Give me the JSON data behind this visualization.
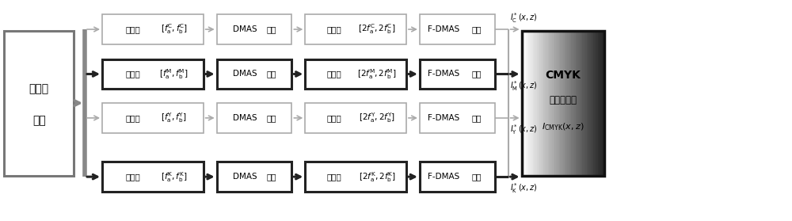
{
  "rows": [
    {
      "label": "C",
      "color": "#aaaaaa",
      "lw": 1.2
    },
    {
      "label": "M",
      "color": "#222222",
      "lw": 2.2
    },
    {
      "label": "Y",
      "color": "#aaaaaa",
      "lw": 1.2
    },
    {
      "label": "K",
      "color": "#222222",
      "lw": 2.2
    }
  ],
  "box1_texts": [
    "prefilter_C",
    "prefilter_M",
    "prefilter_Y",
    "prefilter_K"
  ],
  "box2_texts": [
    "DMAS_alg",
    "DMAS_alg",
    "DMAS_alg",
    "DMAS_alg"
  ],
  "box3_texts": [
    "postfilter_C",
    "postfilter_M",
    "postfilter_Y",
    "postfilter_K"
  ],
  "box4_texts": [
    "FDMAS_img",
    "FDMAS_img",
    "FDMAS_img",
    "FDMAS_img"
  ],
  "output_labels_above": [
    "$I_\\mathrm{C}^*(x,z)$",
    null,
    null,
    null
  ],
  "output_labels_below": [
    null,
    "$I_\\mathrm{M}^*(x,z)$",
    "$I_\\mathrm{Y}^*(x,z)$",
    "$I_\\mathrm{K}^*(x,z)$"
  ],
  "superscripts": [
    "C",
    "M",
    "Y",
    "K"
  ],
  "input_box_text_line1": "全矩阵",
  "input_box_text_line2": "数据",
  "output_box_text1": "CMYK",
  "output_box_text2": "伪彩色图像",
  "bg_color": "#ffffff",
  "trunk_color": "#888888",
  "trunk_lw": 4.0
}
